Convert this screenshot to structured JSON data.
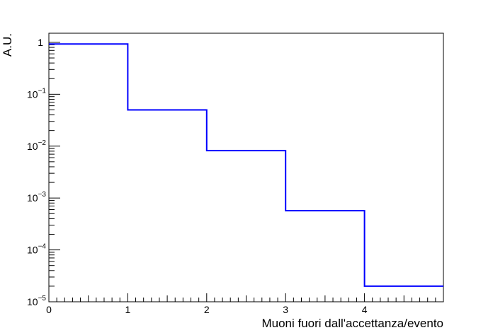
{
  "chart_data": {
    "type": "histogram",
    "title": "",
    "xlabel": "Muoni fuori dall'accettanza/evento",
    "ylabel": "A.U.",
    "xlim": [
      0,
      5
    ],
    "ylim": [
      1e-05,
      1.5
    ],
    "yscale": "log",
    "grid": false,
    "legend": "none",
    "line_color": "#0000ff",
    "bins": [
      {
        "x0": 0,
        "x1": 1,
        "y": 0.93
      },
      {
        "x0": 1,
        "x1": 2,
        "y": 0.05
      },
      {
        "x0": 2,
        "x1": 3,
        "y": 0.0082
      },
      {
        "x0": 3,
        "x1": 4,
        "y": 0.00057
      },
      {
        "x0": 4,
        "x1": 5,
        "y": 2e-05
      }
    ],
    "x_tick_labels": [
      "0",
      "1",
      "2",
      "3",
      "4"
    ],
    "y_tick_labels": [
      {
        "base": "1",
        "exp": ""
      },
      {
        "base": "10",
        "exp": "−1"
      },
      {
        "base": "10",
        "exp": "−2"
      },
      {
        "base": "10",
        "exp": "−3"
      },
      {
        "base": "10",
        "exp": "−4"
      },
      {
        "base": "10",
        "exp": "−5"
      }
    ]
  }
}
